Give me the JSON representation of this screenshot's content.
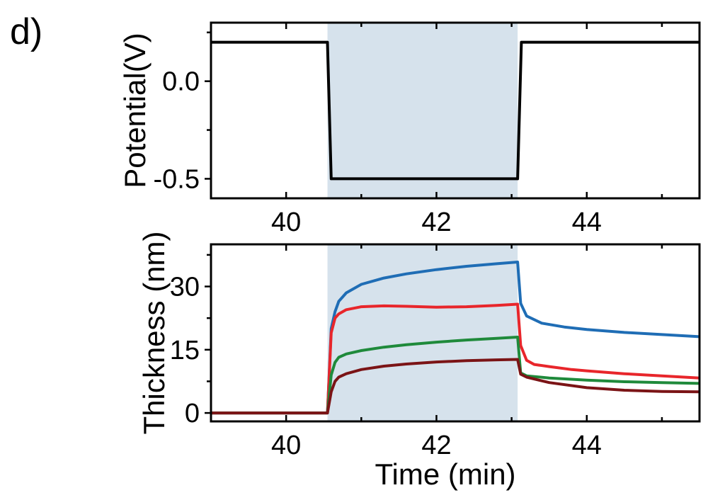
{
  "panel_label": "d)",
  "chart_data": [
    {
      "type": "line",
      "ylabel": "Potential(V)",
      "xlabel": "",
      "xlim": [
        39.0,
        45.5
      ],
      "ylim": [
        -0.6,
        0.3
      ],
      "xticks": [
        40,
        42,
        44
      ],
      "xtick_labels": [
        "40",
        "42",
        "44"
      ],
      "yticks": [
        -0.5,
        0.0
      ],
      "ytick_labels": [
        "-0.5",
        "0.0"
      ],
      "grid": false,
      "highlight_region": {
        "x0": 40.55,
        "x1": 43.08,
        "color": "#d6e2ec"
      },
      "series": [
        {
          "color": "#000000",
          "x": [
            39.0,
            40.55,
            40.6,
            43.08,
            43.13,
            45.5
          ],
          "y": [
            0.2,
            0.2,
            -0.5,
            -0.5,
            0.2,
            0.2
          ]
        }
      ]
    },
    {
      "type": "line",
      "ylabel": "Thickness (nm)",
      "xlabel": "Time (min)",
      "xlim": [
        39.0,
        45.5
      ],
      "ylim": [
        -2,
        40
      ],
      "xticks": [
        40,
        42,
        44
      ],
      "xtick_labels": [
        "40",
        "42",
        "44"
      ],
      "yticks": [
        0,
        15,
        30
      ],
      "ytick_labels": [
        "0",
        "15",
        "30"
      ],
      "grid": false,
      "highlight_region": {
        "x0": 40.55,
        "x1": 43.08,
        "color": "#d6e2ec"
      },
      "series": [
        {
          "color": "#1f6db5",
          "x": [
            39.0,
            40.55,
            40.6,
            40.65,
            40.7,
            40.8,
            41.0,
            41.3,
            41.6,
            42.0,
            42.4,
            42.8,
            43.08,
            43.12,
            43.2,
            43.4,
            43.7,
            44.0,
            44.5,
            45.0,
            45.5
          ],
          "y": [
            0,
            0,
            20,
            24,
            26.5,
            28.5,
            30.5,
            32,
            33,
            34,
            34.8,
            35.4,
            35.8,
            26,
            23,
            21.3,
            20.4,
            19.8,
            19.1,
            18.6,
            18.1
          ]
        },
        {
          "color": "#e8262b",
          "x": [
            39.0,
            40.55,
            40.6,
            40.65,
            40.7,
            40.8,
            41.0,
            41.3,
            41.6,
            42.0,
            42.4,
            42.8,
            43.08,
            43.12,
            43.2,
            43.3,
            43.5,
            43.8,
            44.0,
            44.5,
            45.0,
            45.5
          ],
          "y": [
            0,
            0,
            19,
            22.5,
            23.5,
            24.5,
            25.2,
            25.4,
            25.3,
            25.1,
            25.2,
            25.5,
            25.8,
            16,
            12.5,
            11.5,
            11,
            10.3,
            10,
            9.3,
            8.8,
            8.3
          ]
        },
        {
          "color": "#1f8a3b",
          "x": [
            39.0,
            40.55,
            40.6,
            40.65,
            40.7,
            40.8,
            41.0,
            41.3,
            41.6,
            42.0,
            42.4,
            42.8,
            43.08,
            43.12,
            43.2,
            43.5,
            44.0,
            44.5,
            45.0,
            45.5
          ],
          "y": [
            0,
            0,
            9,
            12,
            13.2,
            14,
            14.8,
            15.6,
            16.2,
            16.8,
            17.3,
            17.7,
            18,
            9.5,
            8.8,
            8.3,
            7.8,
            7.4,
            7.2,
            7.0
          ]
        },
        {
          "color": "#7b1416",
          "x": [
            39.0,
            40.55,
            40.6,
            40.65,
            40.7,
            40.8,
            41.0,
            41.3,
            41.6,
            42.0,
            42.4,
            42.8,
            43.08,
            43.12,
            43.2,
            43.5,
            44.0,
            44.5,
            45.0,
            45.5
          ],
          "y": [
            0,
            0,
            5,
            7.5,
            8.5,
            9.3,
            10.3,
            11.1,
            11.6,
            12.1,
            12.4,
            12.6,
            12.7,
            9.2,
            8.5,
            7.2,
            6.0,
            5.4,
            5.1,
            5.0
          ]
        }
      ]
    }
  ]
}
